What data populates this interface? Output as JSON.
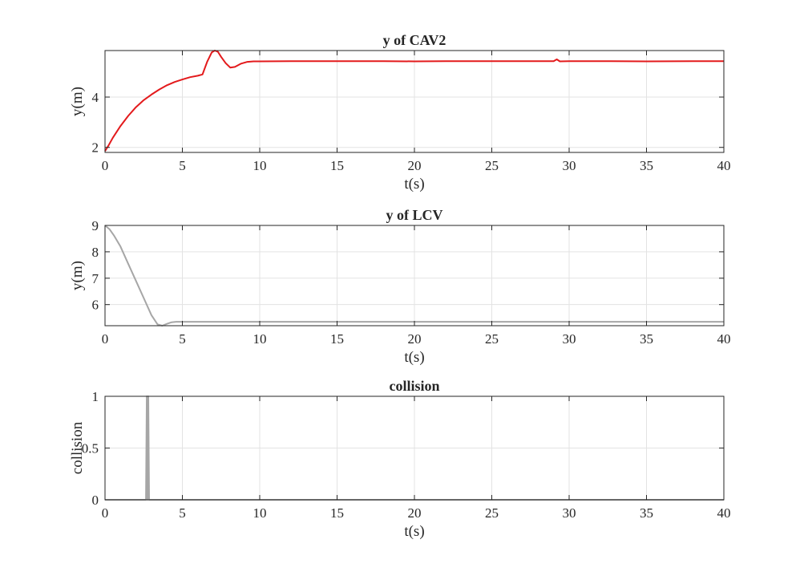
{
  "chart_data": [
    {
      "type": "line",
      "title": "y of CAV2",
      "xlabel": "t(s)",
      "ylabel": "y(m)",
      "xlim": [
        0,
        40
      ],
      "ylim": [
        1.8,
        5.85
      ],
      "xticks": [
        0,
        5,
        10,
        15,
        20,
        25,
        30,
        35,
        40
      ],
      "yticks": [
        2,
        4
      ],
      "grid": true,
      "series": [
        {
          "color": "#e31a1c",
          "x": [
            0,
            0.25,
            0.5,
            1,
            1.5,
            2,
            2.5,
            3,
            3.5,
            4,
            4.5,
            5,
            5.5,
            6,
            6.3,
            6.6,
            6.9,
            7.1,
            7.3,
            7.5,
            7.8,
            8.1,
            8.4,
            8.8,
            9.2,
            9.6,
            10,
            12,
            15,
            18,
            20,
            22,
            25,
            27,
            29,
            29.2,
            29.4,
            30,
            32,
            35,
            38,
            40
          ],
          "y": [
            1.85,
            2.1,
            2.38,
            2.85,
            3.25,
            3.6,
            3.88,
            4.1,
            4.3,
            4.47,
            4.6,
            4.7,
            4.79,
            4.85,
            4.9,
            5.4,
            5.78,
            5.85,
            5.8,
            5.6,
            5.35,
            5.17,
            5.2,
            5.33,
            5.4,
            5.42,
            5.42,
            5.43,
            5.43,
            5.43,
            5.42,
            5.43,
            5.43,
            5.43,
            5.43,
            5.5,
            5.42,
            5.43,
            5.43,
            5.42,
            5.43,
            5.43
          ]
        }
      ]
    },
    {
      "type": "line",
      "title": "y of LCV",
      "xlabel": "t(s)",
      "ylabel": "y(m)",
      "xlim": [
        0,
        40
      ],
      "ylim": [
        5.2,
        9
      ],
      "xticks": [
        0,
        5,
        10,
        15,
        20,
        25,
        30,
        35,
        40
      ],
      "yticks": [
        6,
        7,
        8,
        9
      ],
      "grid": true,
      "series": [
        {
          "color": "#a6a6a6",
          "x": [
            0,
            0.3,
            0.6,
            1,
            1.5,
            2,
            2.5,
            3,
            3.4,
            3.7,
            4,
            4.3,
            4.6,
            5,
            6,
            10,
            20,
            30,
            40
          ],
          "y": [
            9,
            8.85,
            8.6,
            8.2,
            7.55,
            6.9,
            6.25,
            5.6,
            5.25,
            5.2,
            5.27,
            5.33,
            5.35,
            5.35,
            5.35,
            5.35,
            5.35,
            5.35,
            5.35
          ]
        }
      ]
    },
    {
      "type": "line",
      "title": "collision",
      "xlabel": "t(s)",
      "ylabel": "collision",
      "xlim": [
        0,
        40
      ],
      "ylim": [
        0,
        1
      ],
      "xticks": [
        0,
        5,
        10,
        15,
        20,
        25,
        30,
        35,
        40
      ],
      "yticks": [
        0,
        0.5,
        1
      ],
      "grid": true,
      "series": [
        {
          "color": "#a6a6a6",
          "x": [
            0,
            2.65,
            2.7,
            2.75,
            2.8,
            2.85,
            40
          ],
          "y": [
            0,
            0,
            1,
            0,
            1,
            0,
            0
          ]
        }
      ]
    }
  ]
}
